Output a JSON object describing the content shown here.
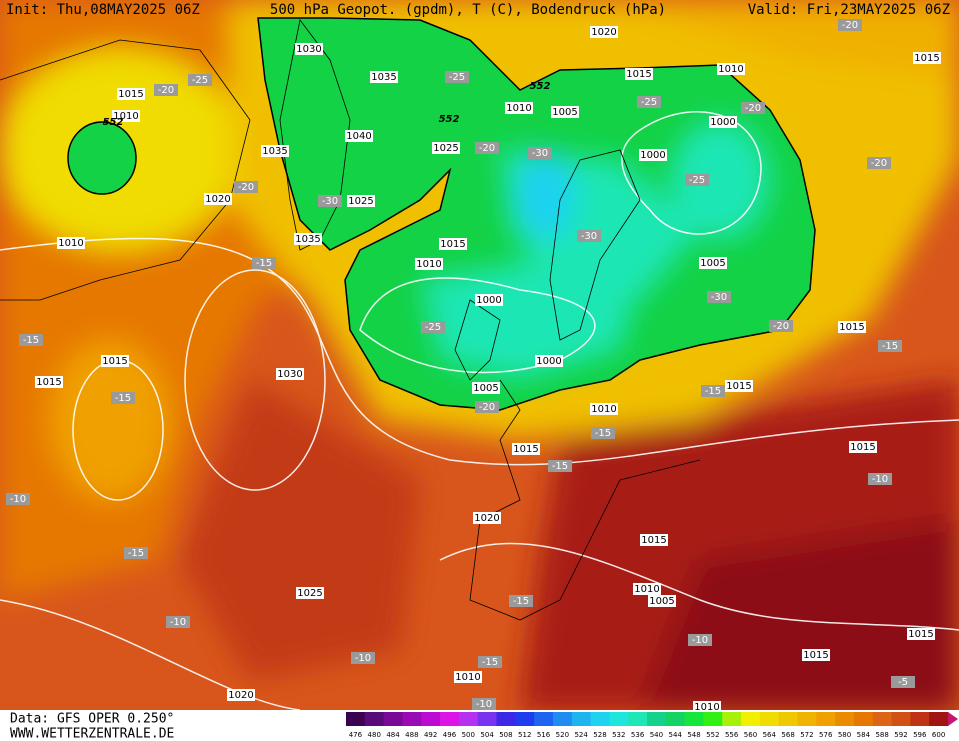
{
  "header": {
    "init": "Init: Thu,08MAY2025 06Z",
    "title": "500 hPa Geopot. (gpdm), T (C), Bodendruck (hPa)",
    "valid": "Valid: Fri,23MAY2025 06Z"
  },
  "footer": {
    "source": "Data: GFS OPER 0.250°",
    "website": "WWW.WETTERZENTRALE.DE"
  },
  "scale": {
    "labels": [
      476,
      480,
      484,
      488,
      492,
      496,
      500,
      504,
      508,
      512,
      516,
      520,
      524,
      528,
      532,
      536,
      540,
      544,
      548,
      552,
      556,
      560,
      564,
      568,
      572,
      576,
      580,
      584,
      588,
      592,
      596,
      600
    ]
  },
  "labels": {
    "isobars": [
      1030,
      1035,
      1040,
      1035,
      1025,
      1025,
      1035,
      1020,
      1015,
      1010,
      1015,
      1010,
      1005,
      1000,
      1000,
      1015,
      1010,
      1005,
      1000,
      1000,
      1005,
      1010,
      1015,
      1015,
      1015,
      1015,
      1020,
      1015,
      1010,
      1005,
      1025,
      1030,
      1015,
      1010,
      1020,
      1010,
      1015,
      1015,
      1020,
      1015,
      1015,
      1010,
      1010
    ],
    "temperature": [
      -25,
      -20,
      -25,
      -20,
      -20,
      -30,
      -25,
      -20,
      -25,
      -20,
      -30,
      -20,
      -15,
      -15,
      -15,
      -30,
      -20,
      -25,
      -20,
      -15,
      -15,
      -15,
      -15,
      -10,
      -10,
      -15,
      -10,
      -10,
      -15,
      -15,
      -10,
      -5,
      -10,
      -30
    ],
    "geopotential": [
      552,
      552,
      552
    ]
  }
}
